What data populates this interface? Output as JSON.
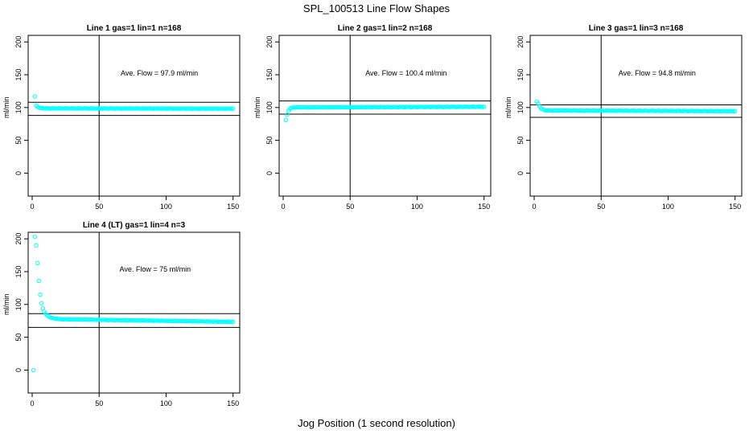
{
  "figure": {
    "title": "SPL_100513  Line Flow Shapes",
    "xlabel": "Jog Position (1 second resolution)"
  },
  "chart_data": [
    {
      "type": "scatter",
      "title": "Line 1 gas=1 lin=1 n=168",
      "ylabel": "ml/min",
      "annotation": "Ave. Flow =  97.9  ml/min",
      "xlim": [
        -3,
        155
      ],
      "ylim": [
        -35,
        210
      ],
      "xticks": [
        0,
        50,
        100,
        150
      ],
      "yticks": [
        0,
        50,
        100,
        150,
        200
      ],
      "vline": 50,
      "hlines": [
        108,
        88
      ],
      "head": [
        [
          2,
          117
        ],
        [
          3,
          103
        ],
        [
          4,
          101
        ],
        [
          5,
          100
        ],
        [
          6,
          99.5
        ],
        [
          7,
          99.2
        ],
        [
          8,
          99
        ]
      ],
      "tail": {
        "start": 9,
        "end": 150,
        "y0": 98.7,
        "y1": 98.3
      },
      "color": "#00ffff"
    },
    {
      "type": "scatter",
      "title": "Line 2 gas=1 lin=2 n=168",
      "ylabel": "ml/min",
      "annotation": "Ave. Flow =  100.4  ml/min",
      "xlim": [
        -3,
        155
      ],
      "ylim": [
        -35,
        210
      ],
      "xticks": [
        0,
        50,
        100,
        150
      ],
      "yticks": [
        0,
        50,
        100,
        150,
        200
      ],
      "vline": 50,
      "hlines": [
        110,
        90
      ],
      "head": [
        [
          2,
          81
        ],
        [
          3,
          89
        ],
        [
          4,
          95
        ],
        [
          5,
          98
        ],
        [
          6,
          99.5
        ],
        [
          7,
          100
        ]
      ],
      "tail": {
        "start": 8,
        "end": 150,
        "y0": 100.2,
        "y1": 101.2
      },
      "color": "#00ffff"
    },
    {
      "type": "scatter",
      "title": "Line 3 gas=1 lin=3 n=168",
      "ylabel": "ml/min",
      "annotation": "Ave. Flow =  94.8  ml/min",
      "xlim": [
        -3,
        155
      ],
      "ylim": [
        -35,
        210
      ],
      "xticks": [
        0,
        50,
        100,
        150
      ],
      "yticks": [
        0,
        50,
        100,
        150,
        200
      ],
      "vline": 50,
      "hlines": [
        104,
        85
      ],
      "head": [
        [
          2,
          109
        ],
        [
          3,
          106
        ],
        [
          4,
          102
        ],
        [
          5,
          99
        ],
        [
          6,
          97.5
        ],
        [
          7,
          96.5
        ],
        [
          8,
          96
        ]
      ],
      "tail": {
        "start": 9,
        "end": 150,
        "y0": 95.5,
        "y1": 94.5
      },
      "color": "#00ffff"
    },
    {
      "type": "scatter",
      "title": "Line 4 (LT) gas=1 lin=4 n=3",
      "ylabel": "ml/min",
      "annotation": "Ave. Flow =  75  ml/min",
      "xlim": [
        -3,
        155
      ],
      "ylim": [
        -35,
        210
      ],
      "xticks": [
        0,
        50,
        100,
        150
      ],
      "yticks": [
        0,
        50,
        100,
        150,
        200
      ],
      "vline": 50,
      "hlines": [
        86,
        65
      ],
      "head": [
        [
          1,
          0
        ],
        [
          2,
          203
        ],
        [
          3,
          190
        ],
        [
          4,
          163
        ],
        [
          5,
          136
        ],
        [
          6,
          115
        ],
        [
          7,
          102
        ],
        [
          8,
          94
        ],
        [
          9,
          89
        ],
        [
          10,
          86
        ],
        [
          11,
          84
        ],
        [
          12,
          82
        ],
        [
          13,
          81
        ],
        [
          14,
          80
        ],
        [
          15,
          79.5
        ],
        [
          16,
          79
        ],
        [
          17,
          78.6
        ],
        [
          18,
          78.3
        ],
        [
          19,
          78
        ],
        [
          20,
          77.8
        ]
      ],
      "tail": {
        "start": 21,
        "end": 150,
        "y0": 77.5,
        "y1": 73.5
      },
      "color": "#00ffff"
    }
  ]
}
